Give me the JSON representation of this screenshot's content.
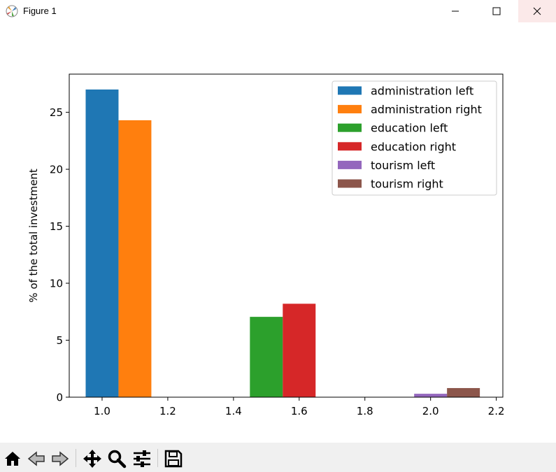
{
  "window": {
    "title": "Figure 1"
  },
  "toolbar": {
    "tools": [
      {
        "name": "home-icon"
      },
      {
        "name": "back-icon"
      },
      {
        "name": "forward-icon"
      },
      {
        "name": "pan-icon"
      },
      {
        "name": "zoom-icon"
      },
      {
        "name": "configure-subplots-icon"
      },
      {
        "name": "save-icon"
      }
    ]
  },
  "chart_data": {
    "type": "bar",
    "title": "",
    "xlabel": "",
    "ylabel": "% of the total investment",
    "xlim": [
      0.9,
      2.22
    ],
    "ylim": [
      0,
      28.35
    ],
    "xticks": [
      1.0,
      1.2,
      1.4,
      1.6,
      1.8,
      2.0,
      2.2
    ],
    "xtick_labels": [
      "1.0",
      "1.2",
      "1.4",
      "1.6",
      "1.8",
      "2.0",
      "2.2"
    ],
    "yticks": [
      0,
      5,
      10,
      15,
      20,
      25
    ],
    "ytick_labels": [
      "0",
      "5",
      "10",
      "15",
      "20",
      "25"
    ],
    "bar_width": 0.1,
    "legend_position": "upper right",
    "grid": false,
    "series": [
      {
        "name": "administration left",
        "x": 1.0,
        "value": 27.0,
        "color": "#1f77b4"
      },
      {
        "name": "administration right",
        "x": 1.1,
        "value": 24.3,
        "color": "#ff7f0e"
      },
      {
        "name": "education left",
        "x": 1.5,
        "value": 7.05,
        "color": "#2ca02c"
      },
      {
        "name": "education right",
        "x": 1.6,
        "value": 8.2,
        "color": "#d62728"
      },
      {
        "name": "tourism left",
        "x": 2.0,
        "value": 0.3,
        "color": "#9467bd"
      },
      {
        "name": "tourism right",
        "x": 2.1,
        "value": 0.8,
        "color": "#8c564b"
      }
    ]
  }
}
